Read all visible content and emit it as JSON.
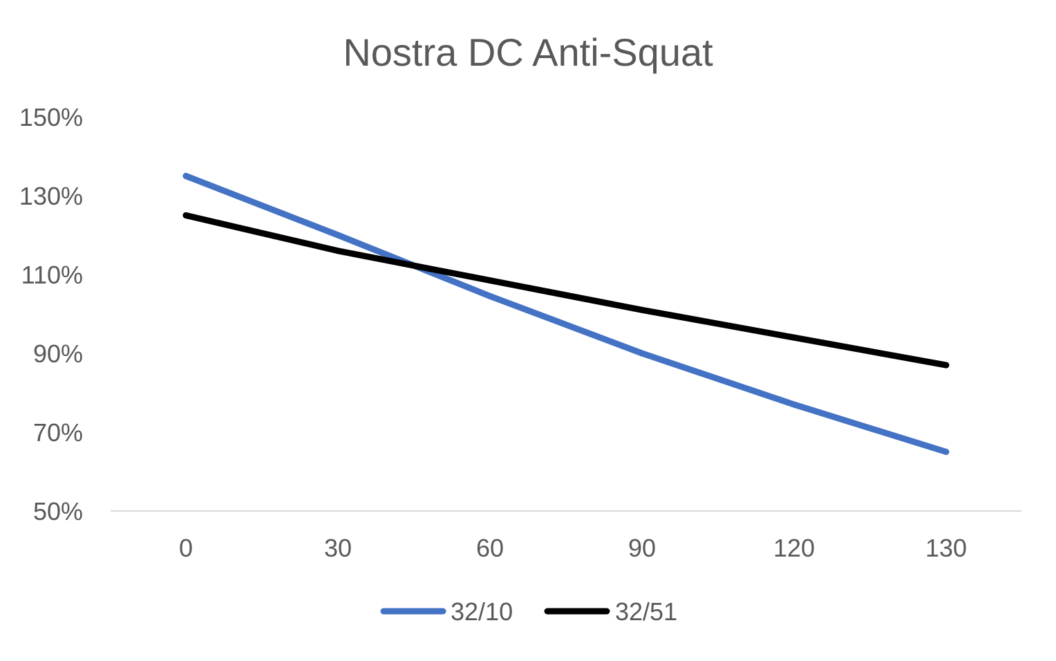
{
  "chart_data": {
    "type": "line",
    "title": "Nostra DC Anti-Squat",
    "xlabel": "",
    "ylabel": "",
    "categories": [
      "0",
      "30",
      "60",
      "90",
      "120",
      "130"
    ],
    "y_ticks": [
      "50%",
      "70%",
      "90%",
      "110%",
      "130%",
      "150%"
    ],
    "ylim": [
      50,
      150
    ],
    "y_unit": "%",
    "grid": false,
    "legend_position": "bottom",
    "series": [
      {
        "name": "32/10",
        "color": "#4472C4",
        "values": [
          135,
          120,
          104.5,
          90,
          77,
          65
        ]
      },
      {
        "name": "32/51",
        "color": "#000000",
        "values": [
          125,
          116,
          108.5,
          101,
          94,
          87
        ]
      }
    ]
  }
}
